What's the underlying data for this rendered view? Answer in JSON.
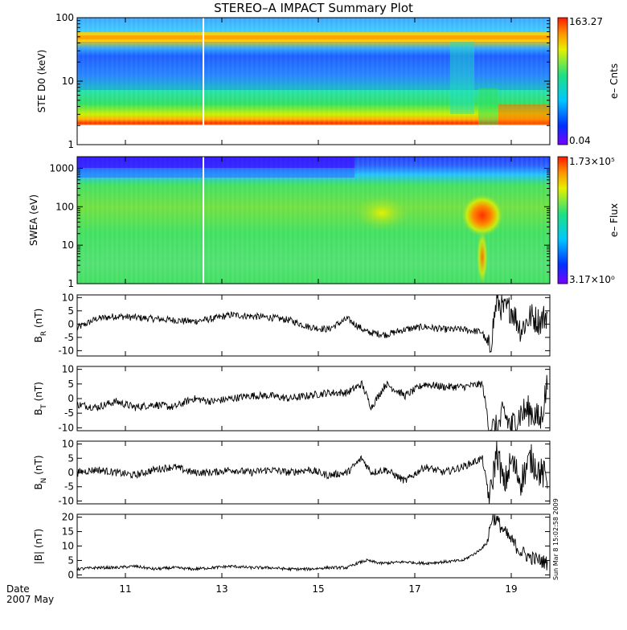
{
  "title": "STEREO–A IMPACT Summary Plot",
  "date_label": "Date",
  "date_year_month": "2007 May",
  "timestamp": "Sun Mar  8 15:02:58 2009",
  "chart_data": [
    {
      "type": "heatmap",
      "name": "STE D0",
      "ylabel": "STE D0 (keV)",
      "yscale": "log",
      "ylim": [
        1,
        100
      ],
      "yticks": [
        "1",
        "10",
        "100"
      ],
      "colorbar": {
        "label": "e– Cnts",
        "max_label": "163.27",
        "min_label": "0.04"
      },
      "x_range_days": [
        10.0,
        19.8
      ]
    },
    {
      "type": "heatmap",
      "name": "SWEA",
      "ylabel": "SWEA (eV)",
      "yscale": "log",
      "ylim": [
        1,
        2000
      ],
      "yticks": [
        "1",
        "10",
        "100",
        "1000"
      ],
      "colorbar": {
        "label": "e– Flux",
        "max_label": "1.73×10⁵",
        "min_label": "3.17×10⁰"
      },
      "x_range_days": [
        10.0,
        19.8
      ]
    },
    {
      "type": "line",
      "name": "B_R",
      "ylabel": "B_R (nT)",
      "ylim": [
        -12,
        11
      ],
      "yticks": [
        10,
        5,
        0,
        -5,
        -10
      ],
      "x": [
        10.0,
        10.4,
        10.8,
        11.2,
        11.6,
        12.0,
        12.4,
        12.8,
        13.2,
        13.6,
        14.0,
        14.4,
        14.8,
        15.2,
        15.6,
        16.0,
        16.4,
        16.8,
        17.2,
        17.6,
        18.0,
        18.4,
        18.55,
        18.7,
        18.85,
        19.0,
        19.2,
        19.4,
        19.6,
        19.75
      ],
      "y": [
        -1.5,
        2,
        3,
        2.5,
        2,
        1.5,
        1,
        2,
        3.5,
        3,
        2.5,
        1.5,
        -1,
        -2,
        2,
        -3,
        -4,
        -2,
        -1,
        -2,
        -2,
        -3,
        -10,
        9,
        5,
        6,
        -2,
        3,
        1,
        4
      ]
    },
    {
      "type": "line",
      "name": "B_T",
      "ylabel": "B_T (nT)",
      "ylim": [
        -11,
        11
      ],
      "yticks": [
        10,
        5,
        0,
        -5,
        -10
      ],
      "x": [
        10.0,
        10.4,
        10.8,
        11.2,
        11.6,
        12.0,
        12.4,
        12.8,
        13.2,
        13.6,
        14.0,
        14.4,
        14.8,
        15.2,
        15.6,
        15.9,
        16.1,
        16.4,
        16.8,
        17.2,
        17.6,
        18.0,
        18.4,
        18.55,
        18.7,
        18.85,
        19.0,
        19.2,
        19.4,
        19.6,
        19.75
      ],
      "y": [
        -2,
        -3,
        -1,
        -3,
        -2,
        -3,
        0,
        -1,
        0,
        1,
        1,
        0,
        1,
        2,
        2,
        5,
        -3,
        5,
        1,
        5,
        4,
        4,
        5,
        -10,
        -11,
        -5,
        -10,
        -5,
        -4,
        -8,
        5
      ]
    },
    {
      "type": "line",
      "name": "B_N",
      "ylabel": "B_N (nT)",
      "ylim": [
        -11,
        11
      ],
      "yticks": [
        10,
        5,
        0,
        -5,
        -10
      ],
      "x": [
        10.0,
        10.4,
        10.8,
        11.2,
        11.6,
        12.0,
        12.4,
        12.8,
        13.2,
        13.6,
        14.0,
        14.4,
        14.8,
        15.2,
        15.6,
        15.9,
        16.1,
        16.4,
        16.8,
        17.2,
        17.6,
        18.0,
        18.4,
        18.55,
        18.7,
        18.85,
        19.0,
        19.2,
        19.4,
        19.6,
        19.75
      ],
      "y": [
        0,
        1,
        0,
        -1,
        1,
        2,
        0,
        0,
        1,
        0,
        1,
        0,
        1,
        -1,
        0,
        5,
        0,
        1,
        -3,
        2,
        0,
        2,
        5,
        -10,
        8,
        -5,
        4,
        -3,
        5,
        0,
        -2
      ]
    },
    {
      "type": "line",
      "name": "|B|",
      "ylabel": "|B| (nT)",
      "ylim": [
        -1,
        21
      ],
      "yticks": [
        20,
        15,
        10,
        5,
        0
      ],
      "x": [
        10.0,
        10.4,
        10.8,
        11.2,
        11.6,
        12.0,
        12.4,
        12.8,
        13.2,
        13.6,
        14.0,
        14.4,
        14.8,
        15.2,
        15.6,
        15.8,
        16.0,
        16.3,
        16.8,
        17.2,
        17.6,
        18.0,
        18.3,
        18.5,
        18.6,
        18.7,
        18.85,
        19.0,
        19.2,
        19.4,
        19.6,
        19.75
      ],
      "y": [
        2,
        2.5,
        2.5,
        3,
        2,
        2.5,
        2,
        2.5,
        3,
        2.5,
        2.5,
        2,
        2,
        2.5,
        2.5,
        4,
        5,
        4,
        4.5,
        4,
        4.5,
        5,
        8,
        11,
        20,
        19,
        15,
        12,
        8,
        6,
        5,
        4
      ]
    }
  ],
  "xaxis": {
    "range": [
      10.0,
      19.8
    ],
    "ticks": [
      11,
      13,
      15,
      17,
      19
    ],
    "tick_labels": [
      "11",
      "13",
      "15",
      "17",
      "19"
    ]
  }
}
